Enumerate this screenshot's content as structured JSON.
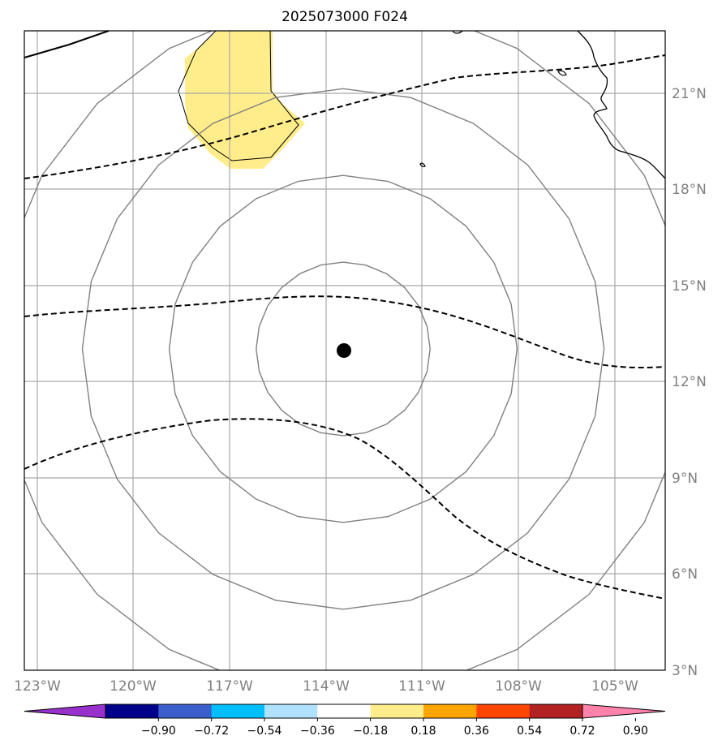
{
  "title": "2025073000 F024",
  "lon_labels": [
    "123°W",
    "120°W",
    "117°W",
    "114°W",
    "111°W",
    "108°W",
    "105°W"
  ],
  "lat_labels": [
    "21°N",
    "18°N",
    "15°N",
    "12°N",
    "9°N",
    "6°N",
    "3°N"
  ],
  "map": {
    "extent": {
      "lon_min": -123.4,
      "lon_max": -103.5,
      "lat_min": 3.0,
      "lat_max": 22.9
    },
    "center_marker": {
      "lon": -113.5,
      "lat": 13.0
    },
    "range_ring_radii_deg": [
      2.7,
      5.4,
      8.1,
      10.8
    ]
  },
  "colorbar": {
    "colors": [
      "#9932cc",
      "#00008b",
      "#3a5fcd",
      "#00bfff",
      "#b0e2ff",
      "#ffffff",
      "#ffec8b",
      "#ffa500",
      "#ff4500",
      "#b22222",
      "#ff82ab"
    ],
    "tick_labels": [
      "−0.90",
      "−0.72",
      "−0.54",
      "−0.36",
      "−0.18",
      "0.18",
      "0.36",
      "0.54",
      "0.72",
      "0.90"
    ]
  },
  "colors": {
    "ring": "#808080",
    "grid": "#a9a9a9",
    "coast": "#000000",
    "anomaly_fill": "#ffec8b"
  }
}
